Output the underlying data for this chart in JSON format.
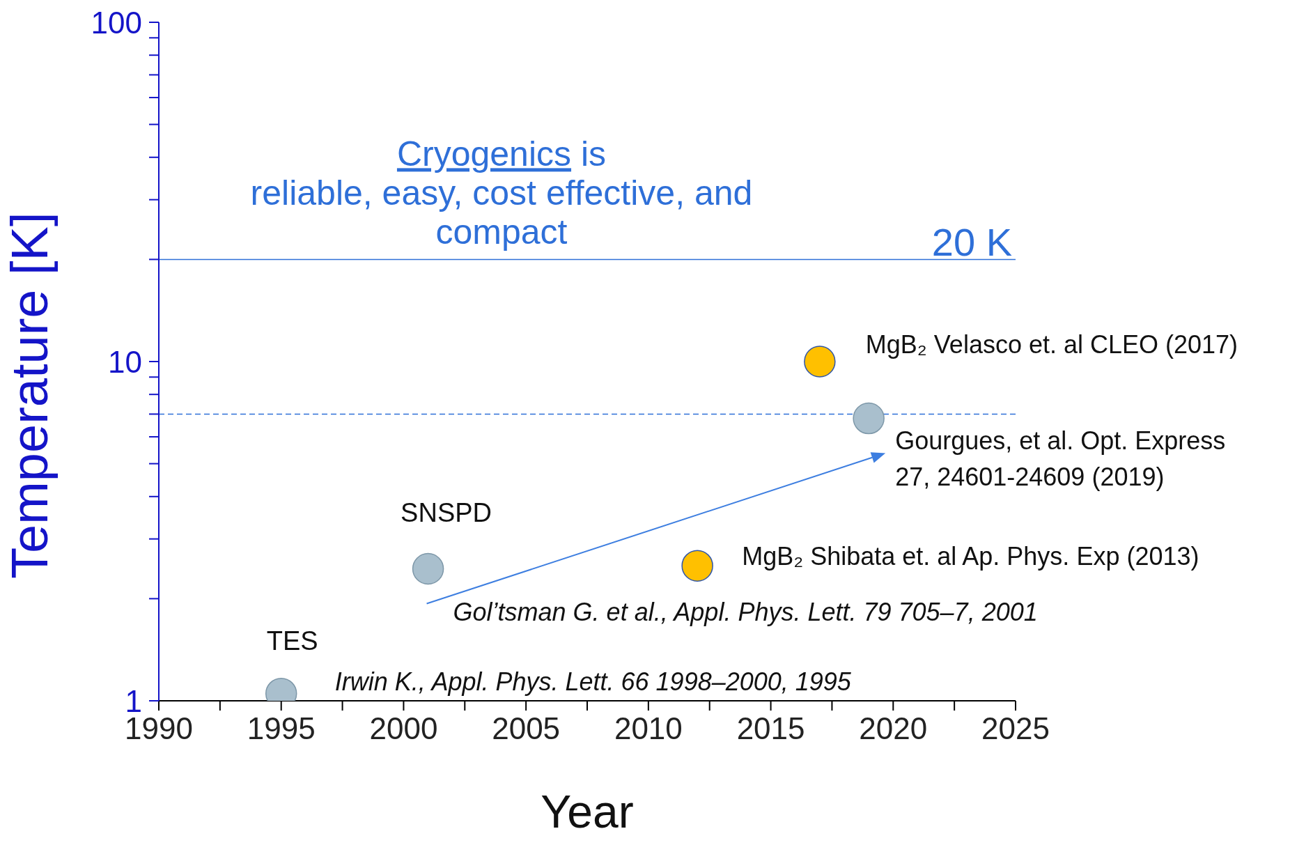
{
  "chart_data": {
    "type": "scatter",
    "xlabel": "Year",
    "ylabel": "Temperature [K]",
    "log": "y",
    "marker": "circle",
    "grid": false,
    "legend": false,
    "xlim": [
      1990,
      2025
    ],
    "xticks": [
      1990,
      {
        "value": 1992.5,
        "label": null
      },
      1995,
      {
        "value": 1997.5,
        "label": null
      },
      2000,
      {
        "value": 2002.5,
        "label": null
      },
      2005,
      {
        "value": 2007.5,
        "label": null
      },
      2010,
      {
        "value": 2012.5,
        "label": null
      },
      2015,
      {
        "value": 2017.5,
        "label": null
      },
      2020,
      {
        "value": 2022.5,
        "label": null
      },
      2025
    ],
    "ylim": [
      1,
      100
    ],
    "yticks": [
      1,
      {
        "value": 2,
        "label": null
      },
      {
        "value": 3,
        "label": null
      },
      {
        "value": 4,
        "label": null
      },
      {
        "value": 5,
        "label": null
      },
      {
        "value": 6,
        "label": null
      },
      {
        "value": 7,
        "label": null
      },
      {
        "value": 8,
        "label": null
      },
      {
        "value": 9,
        "label": null
      },
      10,
      {
        "value": 20,
        "label": null
      },
      {
        "value": 30,
        "label": null
      },
      {
        "value": 40,
        "label": null
      },
      {
        "value": 50,
        "label": null
      },
      {
        "value": 60,
        "label": null
      },
      {
        "value": 70,
        "label": null
      },
      {
        "value": 80,
        "label": null
      },
      {
        "value": 90,
        "label": null
      },
      100
    ],
    "series": [
      {
        "color": "#a9bfcd",
        "x": [
          1995,
          2001,
          2019
        ],
        "values": [
          1.05,
          2.45,
          6.8
        ]
      },
      {
        "color": "#ffc000",
        "x": [
          2012,
          2017
        ],
        "values": [
          2.5,
          10
        ]
      }
    ],
    "ref_lines": [
      {
        "axis": "y",
        "value": 20,
        "label": "20 K",
        "color": "#2e6fd8",
        "line_style": "solid"
      },
      {
        "axis": "y",
        "value": 7,
        "color": "#2e6fd8",
        "line_style": "dashed"
      }
    ],
    "annotations": [
      "Cryogenics is\nreliable, easy, cost effective, and\ncompact",
      {
        "text": "TES",
        "x": 1995,
        "y": 1.05
      },
      {
        "text": "Irwin K., Appl. Phys. Lett. 66 1998–2000, 1995",
        "x": 1995,
        "y": 1.05
      },
      {
        "text": "SNSPD",
        "x": 2001,
        "y": 2.45
      },
      {
        "text": "Gol’tsman G. et al., Appl. Phys. Lett. 79 705–7, 2001",
        "x": 2001,
        "y": 2.45
      },
      {
        "text": "MgB₂ Shibata  et. al Ap. Phys. Exp (2013)",
        "x": 2012,
        "y": 2.5
      },
      {
        "text": "MgB₂ Velasco et. al CLEO (2017)",
        "x": 2017,
        "y": 10
      },
      {
        "text": "Gourgues, et al.  Opt. Express\n27, 24601-24609 (2019)",
        "x": 2019,
        "y": 6.8
      }
    ]
  }
}
